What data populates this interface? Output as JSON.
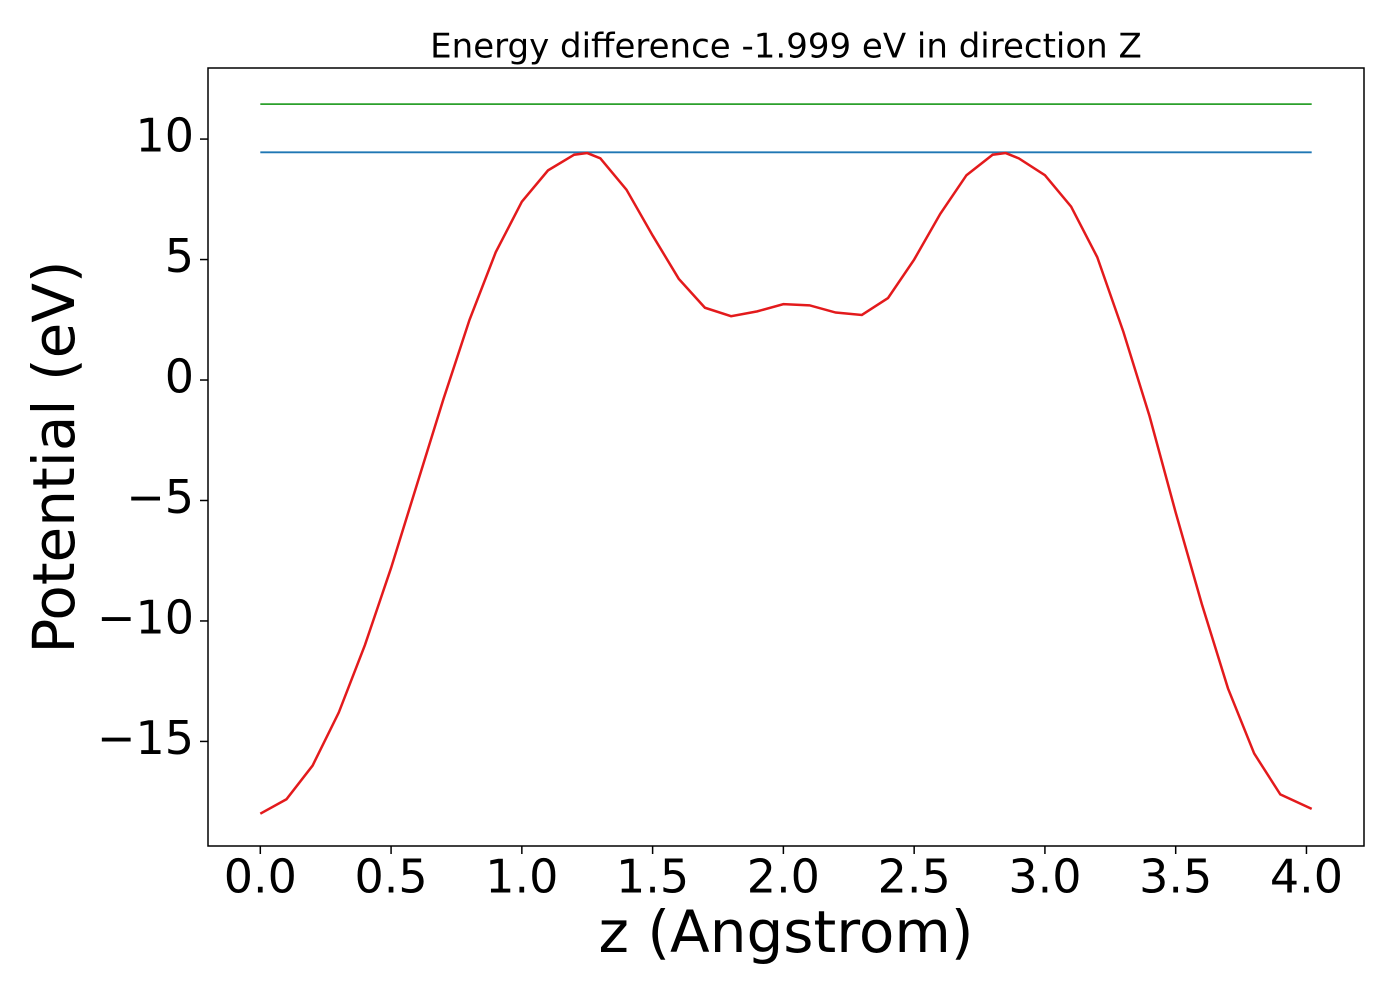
{
  "chart_data": {
    "type": "line",
    "title": "Energy difference -1.999 eV in direction Z",
    "x_label": "z (Angstrom)",
    "y_label": "Potential (eV)",
    "xlim": [
      -0.2,
      4.22
    ],
    "ylim": [
      -19.34,
      12.95
    ],
    "xticks": [
      {
        "value": 0,
        "label": "0.0"
      },
      0.5,
      {
        "value": 1,
        "label": "1.0"
      },
      1.5,
      {
        "value": 2,
        "label": "2.0"
      },
      2.5,
      {
        "value": 3,
        "label": "3.0"
      },
      3.5,
      {
        "value": 4,
        "label": "4.0"
      }
    ],
    "yticks": [
      {
        "value": -15,
        "label": "−15"
      },
      {
        "value": -10,
        "label": "−10"
      },
      {
        "value": -5,
        "label": "−5"
      },
      0,
      5,
      10
    ],
    "series": [
      {
        "color": "#1f77b4",
        "x": [
          0,
          4.02
        ],
        "values": [
          9.45,
          9.45
        ]
      },
      {
        "color": "#2ca02c",
        "x": [
          0,
          4.02
        ],
        "values": [
          11.45,
          11.45
        ]
      },
      {
        "color": "#e31a1c",
        "x": [
          0,
          0.1,
          0.2,
          0.3,
          0.4,
          0.5,
          0.6,
          0.7,
          0.8,
          0.9,
          1.0,
          1.1,
          1.2,
          1.25,
          1.3,
          1.4,
          1.5,
          1.6,
          1.7,
          1.8,
          1.9,
          2.0,
          2.1,
          2.2,
          2.3,
          2.4,
          2.5,
          2.6,
          2.7,
          2.8,
          2.85,
          2.9,
          3.0,
          3.1,
          3.2,
          3.3,
          3.4,
          3.5,
          3.6,
          3.7,
          3.8,
          3.9,
          4.02
        ],
        "values": [
          -18.0,
          -17.4,
          -16.0,
          -13.8,
          -11.0,
          -7.8,
          -4.3,
          -0.8,
          2.5,
          5.3,
          7.4,
          8.7,
          9.35,
          9.42,
          9.2,
          7.9,
          6.0,
          4.2,
          3.0,
          2.65,
          2.85,
          3.15,
          3.1,
          2.8,
          2.7,
          3.4,
          5.0,
          6.9,
          8.5,
          9.35,
          9.42,
          9.2,
          8.5,
          7.2,
          5.1,
          2.0,
          -1.5,
          -5.5,
          -9.3,
          -12.8,
          -15.5,
          -17.2,
          -17.8
        ]
      }
    ]
  }
}
